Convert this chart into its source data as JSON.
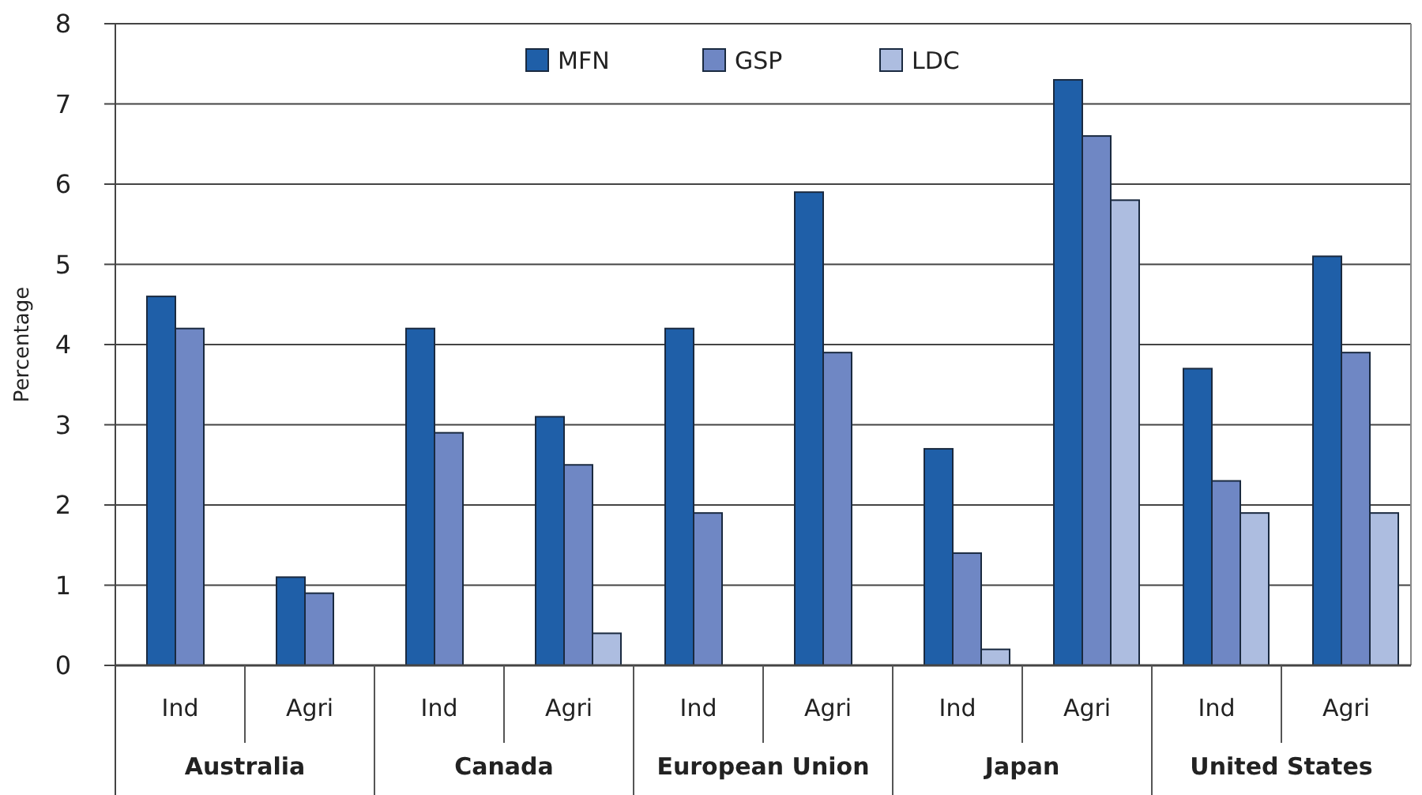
{
  "chart_data": {
    "type": "bar",
    "ylabel": "Percentage",
    "categories": [
      "Ind",
      "Agri",
      "Ind",
      "Agri",
      "Ind",
      "Agri",
      "Ind",
      "Agri",
      "Ind",
      "Agri"
    ],
    "annotations": [
      "Australia",
      "Canada",
      "European Union",
      "Japan",
      "United States"
    ],
    "series": [
      {
        "name": "MFN",
        "color": "#1f5fa8",
        "values": [
          4.6,
          1.1,
          4.2,
          3.1,
          4.2,
          5.9,
          2.7,
          7.3,
          3.7,
          5.1
        ]
      },
      {
        "name": "GSP",
        "color": "#6f87c4",
        "values": [
          4.2,
          0.9,
          2.9,
          2.5,
          1.9,
          3.9,
          1.4,
          6.6,
          2.3,
          3.9
        ]
      },
      {
        "name": "LDC",
        "color": "#adbde0",
        "values": [
          null,
          null,
          null,
          0.4,
          null,
          null,
          0.2,
          5.8,
          1.9,
          1.9
        ]
      }
    ],
    "ylim": [
      0,
      8
    ],
    "yticks": [
      0,
      1,
      2,
      3,
      4,
      5,
      6,
      7,
      8
    ],
    "grid": "y",
    "legend": "top"
  }
}
